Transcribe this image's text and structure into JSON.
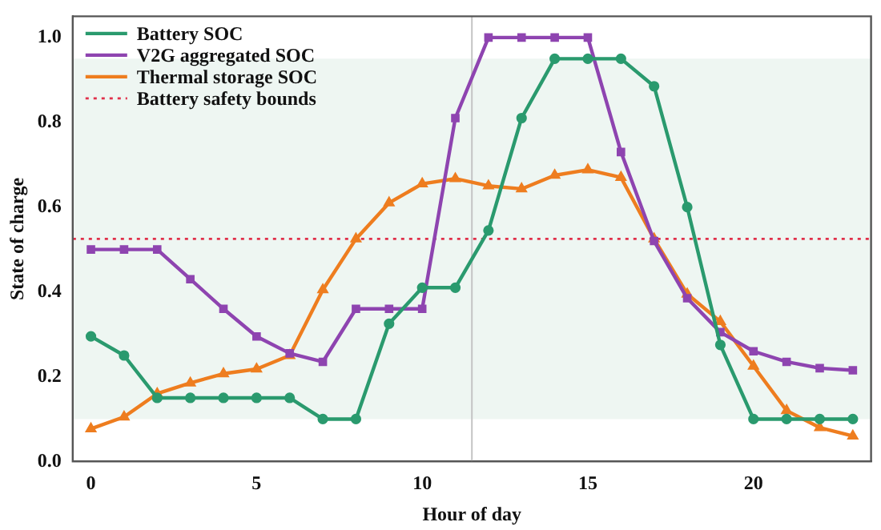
{
  "chart_data": {
    "type": "line",
    "xlabel": "Hour of day",
    "ylabel": "State of charge",
    "x": [
      0,
      1,
      2,
      3,
      4,
      5,
      6,
      7,
      8,
      9,
      10,
      11,
      12,
      13,
      14,
      15,
      16,
      17,
      18,
      19,
      20,
      21,
      22,
      23
    ],
    "xlim": [
      -0.55,
      23.55
    ],
    "xticks": [
      0,
      5,
      10,
      15,
      20
    ],
    "ylim": [
      0,
      1.05
    ],
    "yticks": [
      {
        "value": 0,
        "label": "0.0"
      },
      0.2,
      0.4,
      0.6,
      0.8,
      {
        "value": 1,
        "label": "1.0"
      }
    ],
    "grid": false,
    "legend": "top left",
    "line_style": "solid",
    "series": [
      {
        "name": "Battery SOC",
        "color": "#2a9a6e",
        "marker": "circle",
        "values": [
          0.295,
          0.25,
          0.15,
          0.15,
          0.15,
          0.15,
          0.15,
          0.1,
          0.1,
          0.325,
          0.41,
          0.41,
          0.545,
          0.81,
          0.95,
          0.95,
          0.95,
          0.885,
          0.6,
          0.275,
          0.1,
          0.1,
          0.1,
          0.1
        ]
      },
      {
        "name": "V2G aggregated SOC",
        "color": "#8e44b0",
        "marker": "square",
        "values": [
          0.5,
          0.5,
          0.5,
          0.43,
          0.36,
          0.295,
          0.255,
          0.235,
          0.36,
          0.36,
          0.36,
          0.81,
          1.0,
          1.0,
          1.0,
          1.0,
          0.73,
          0.52,
          0.385,
          0.305,
          0.26,
          0.235,
          0.22,
          0.215
        ]
      },
      {
        "name": "Thermal storage SOC",
        "color": "#ee7d1f",
        "marker": "triangle",
        "values": [
          0.077,
          0.105,
          0.16,
          0.185,
          0.207,
          0.218,
          0.25,
          0.405,
          0.525,
          0.61,
          0.655,
          0.667,
          0.65,
          0.643,
          0.675,
          0.688,
          0.67,
          0.525,
          0.395,
          0.33,
          0.225,
          0.12,
          0.08,
          0.06
        ]
      }
    ],
    "ref_lines": [
      {
        "axis": "y",
        "value": 0.525,
        "label": "Battery safety bounds",
        "color": "#e0304a",
        "line_style": "dotted"
      },
      {
        "axis": "x",
        "value": 11.5,
        "color": "#c4c4c4",
        "line_style": "solid"
      }
    ],
    "bands": [
      {
        "axis": "y",
        "from": 0.1,
        "to": 0.95,
        "color": "#eef6f2"
      }
    ]
  }
}
